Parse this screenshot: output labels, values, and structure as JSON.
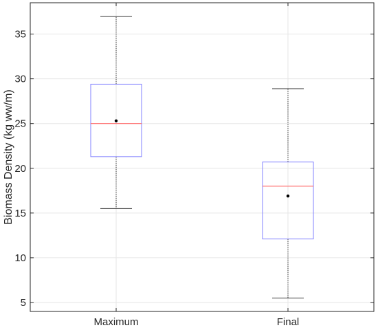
{
  "chart_data": {
    "type": "box",
    "title": "",
    "xlabel": "",
    "ylabel": "Biomass Density (kg ww/m)",
    "ylim": [
      4,
      38.5
    ],
    "yticks": [
      5,
      10,
      15,
      20,
      25,
      30,
      35
    ],
    "grid": true,
    "categories": [
      "Maximum",
      "Final"
    ],
    "boxes": [
      {
        "category": "Maximum",
        "whisker_low": 15.5,
        "q1": 21.3,
        "median": 25.0,
        "q3": 29.4,
        "whisker_high": 37.0,
        "mean": 25.3
      },
      {
        "category": "Final",
        "whisker_low": 5.5,
        "q1": 12.1,
        "median": 18.0,
        "q3": 20.7,
        "whisker_high": 28.9,
        "mean": 16.9
      }
    ],
    "colors": {
      "box": "#8080ff",
      "median": "#ff6666",
      "whisker": "#333333",
      "mean": "#000000",
      "grid": "#e6e6e6",
      "axes": "#262626"
    }
  }
}
